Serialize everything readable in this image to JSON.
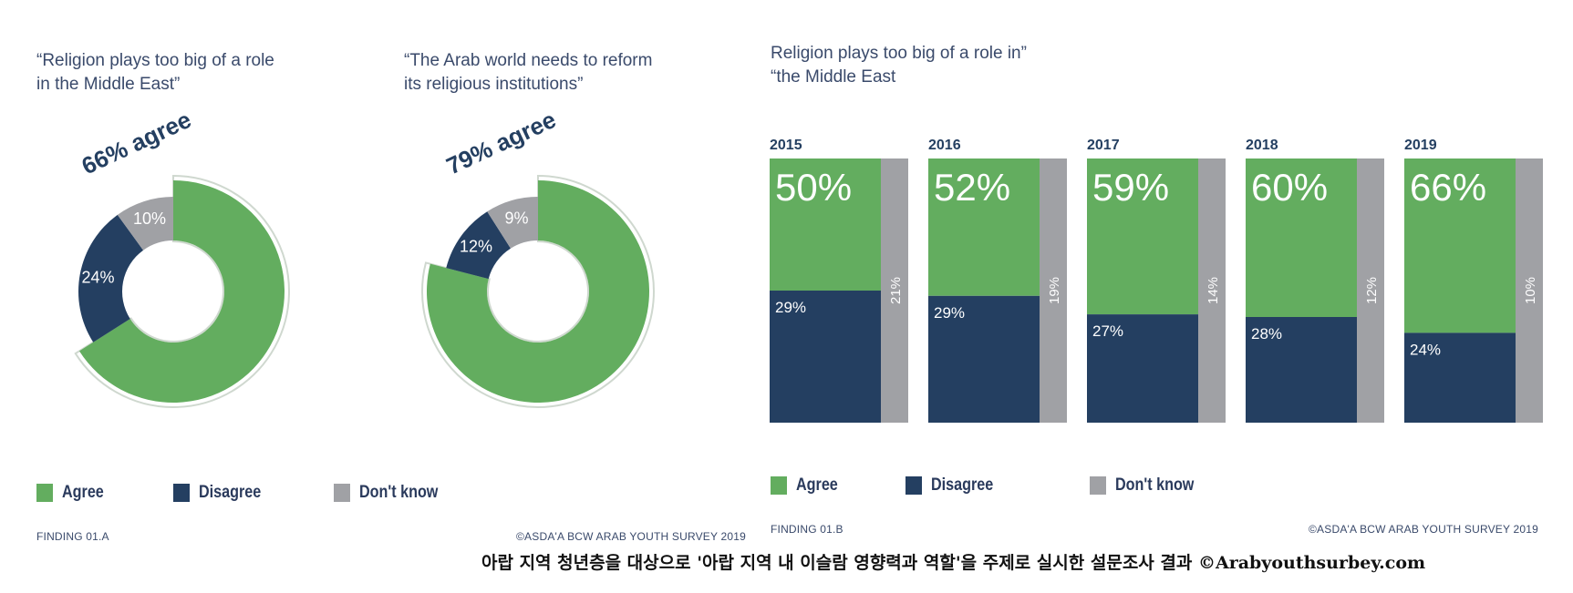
{
  "colors": {
    "agree": "#63ad5f",
    "disagree": "#243f61",
    "dont_know": "#a0a1a5",
    "title": "#3a4a6b"
  },
  "chart_data": [
    {
      "type": "pie",
      "title": "“Religion plays too big of a role\nin the Middle East”",
      "callout": "66% agree",
      "slices": [
        {
          "name": "Agree",
          "value": 66
        },
        {
          "name": "Disagree",
          "value": 24,
          "label": "24%"
        },
        {
          "name": "Don't know",
          "value": 10,
          "label": "10%"
        }
      ],
      "legend": [
        "Agree",
        "Disagree",
        "Don't know"
      ],
      "footer": "FINDING 01.A"
    },
    {
      "type": "pie",
      "title": "“The Arab world needs to reform\nits religious institutions”",
      "callout": "79% agree",
      "slices": [
        {
          "name": "Agree",
          "value": 79
        },
        {
          "name": "Disagree",
          "value": 12,
          "label": "12%"
        },
        {
          "name": "Don't know",
          "value": 9,
          "label": "9%"
        }
      ],
      "footer": "©ASDA'A BCW ARAB YOUTH SURVEY 2019"
    },
    {
      "type": "bar",
      "stacked": true,
      "title": "Religion plays too big of a role in”\n“the Middle East",
      "categories": [
        "2015",
        "2016",
        "2017",
        "2018",
        "2019"
      ],
      "series": [
        {
          "name": "Agree",
          "values": [
            50,
            52,
            59,
            60,
            66
          ],
          "labels": [
            "50%",
            "52%",
            "59%",
            "60%",
            "66%"
          ]
        },
        {
          "name": "Disagree",
          "values": [
            29,
            29,
            27,
            28,
            24
          ],
          "labels": [
            "29%",
            "29%",
            "27%",
            "28%",
            "24%"
          ]
        },
        {
          "name": "Don't know",
          "values": [
            21,
            19,
            14,
            12,
            10
          ],
          "labels": [
            "21%",
            "19%",
            "14%",
            "12%",
            "10%"
          ]
        }
      ],
      "legend": [
        "Agree",
        "Disagree",
        "Don't know"
      ],
      "footer_left": "FINDING 01.B",
      "footer_right": "©ASDA'A BCW ARAB YOUTH SURVEY 2019"
    }
  ],
  "caption": "아랍 지역 청년층을 대상으로 '아랍 지역 내 이슬람 영향력과 역할'을 주제로 실시한 설문조사 결과 ©Arabyouthsurbey.com"
}
